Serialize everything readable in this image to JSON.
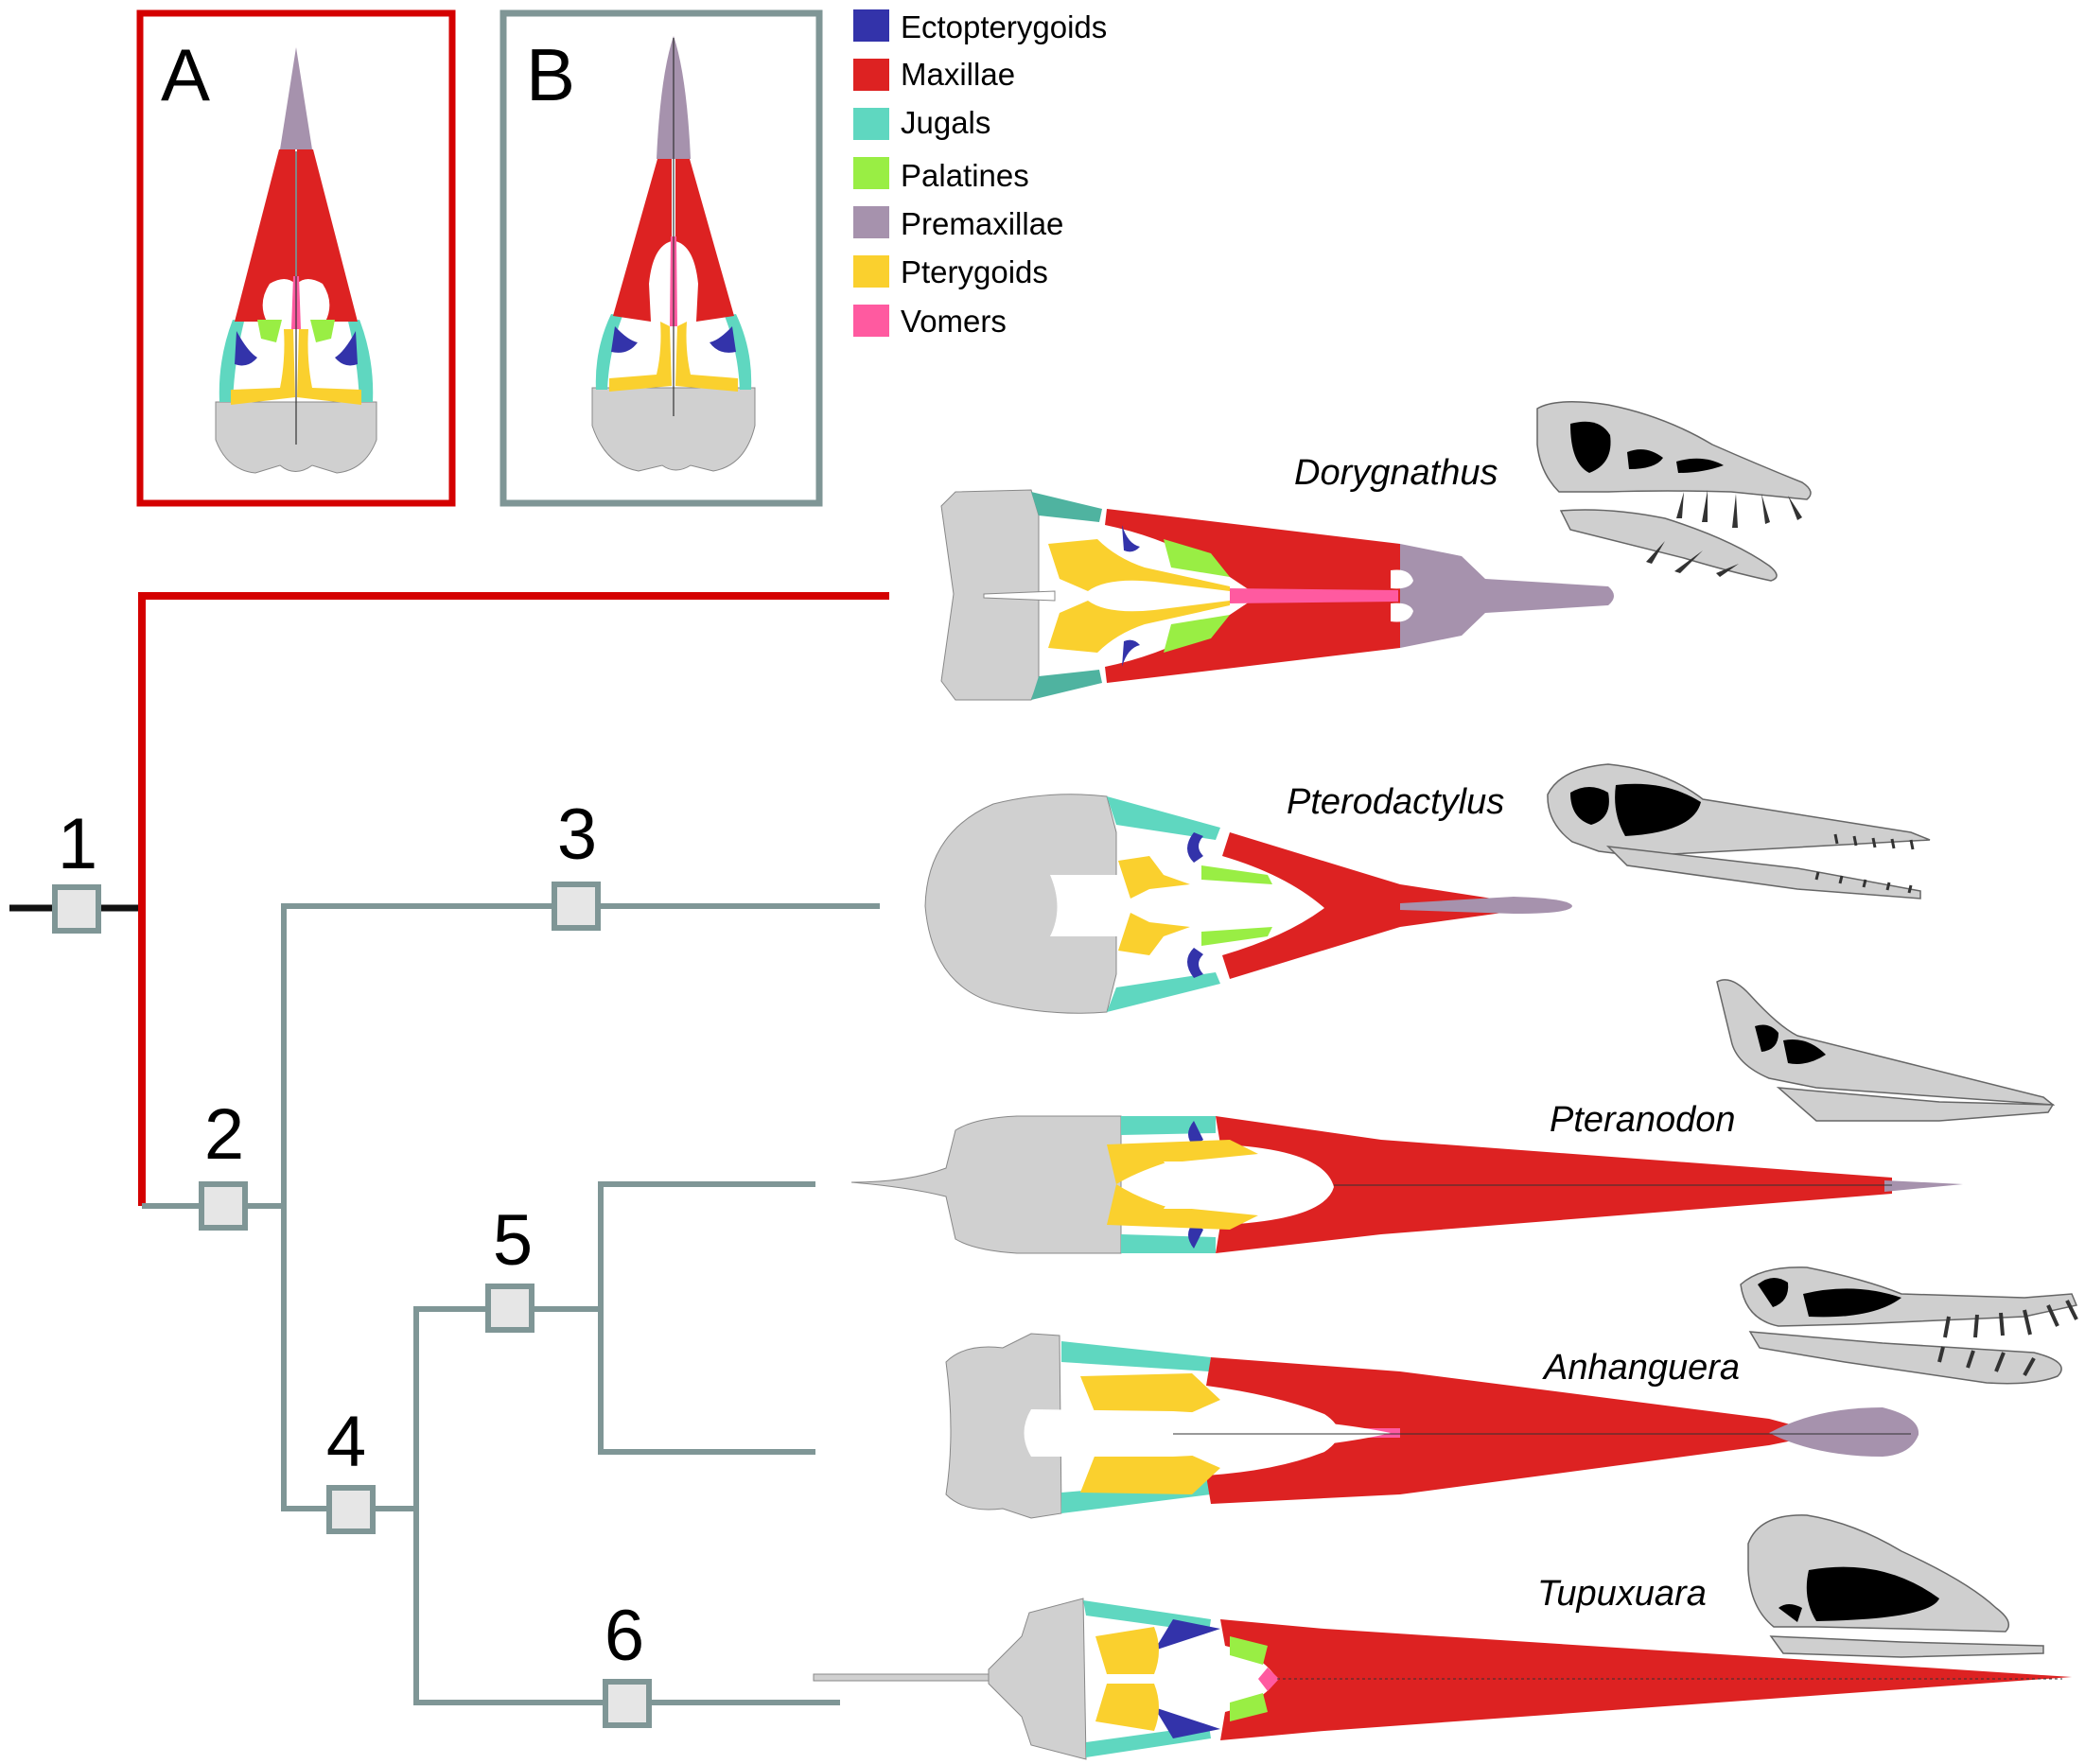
{
  "figure": {
    "panels": [
      {
        "letter": "A",
        "frame_color": "#d40000"
      },
      {
        "letter": "B",
        "frame_color": "#7f9696"
      }
    ],
    "legend": [
      {
        "label": "Ectopterygoids",
        "color": "#3333aa"
      },
      {
        "label": "Maxillae",
        "color": "#dd2222"
      },
      {
        "label": "Jugals",
        "color": "#5fd7c0"
      },
      {
        "label": "Palatines",
        "color": "#99ee44"
      },
      {
        "label": "Premaxillae",
        "color": "#a692ad"
      },
      {
        "label": "Pterygoids",
        "color": "#fad02e"
      },
      {
        "label": "Vomers",
        "color": "#ff5aa0"
      }
    ],
    "nodes": [
      "1",
      "2",
      "3",
      "4",
      "5",
      "6"
    ],
    "taxa": [
      "Dorygnathus",
      "Pterodactylus",
      "Pteranodon",
      "Anhanguera",
      "Tupuxuara"
    ],
    "colors": {
      "skull_gray": "#d0d0d0",
      "branch_red": "#d40000",
      "branch_gray": "#7f9696",
      "node_box_fill": "#e6e6e6",
      "skull_profile_gray": "#cfcfcf"
    }
  }
}
